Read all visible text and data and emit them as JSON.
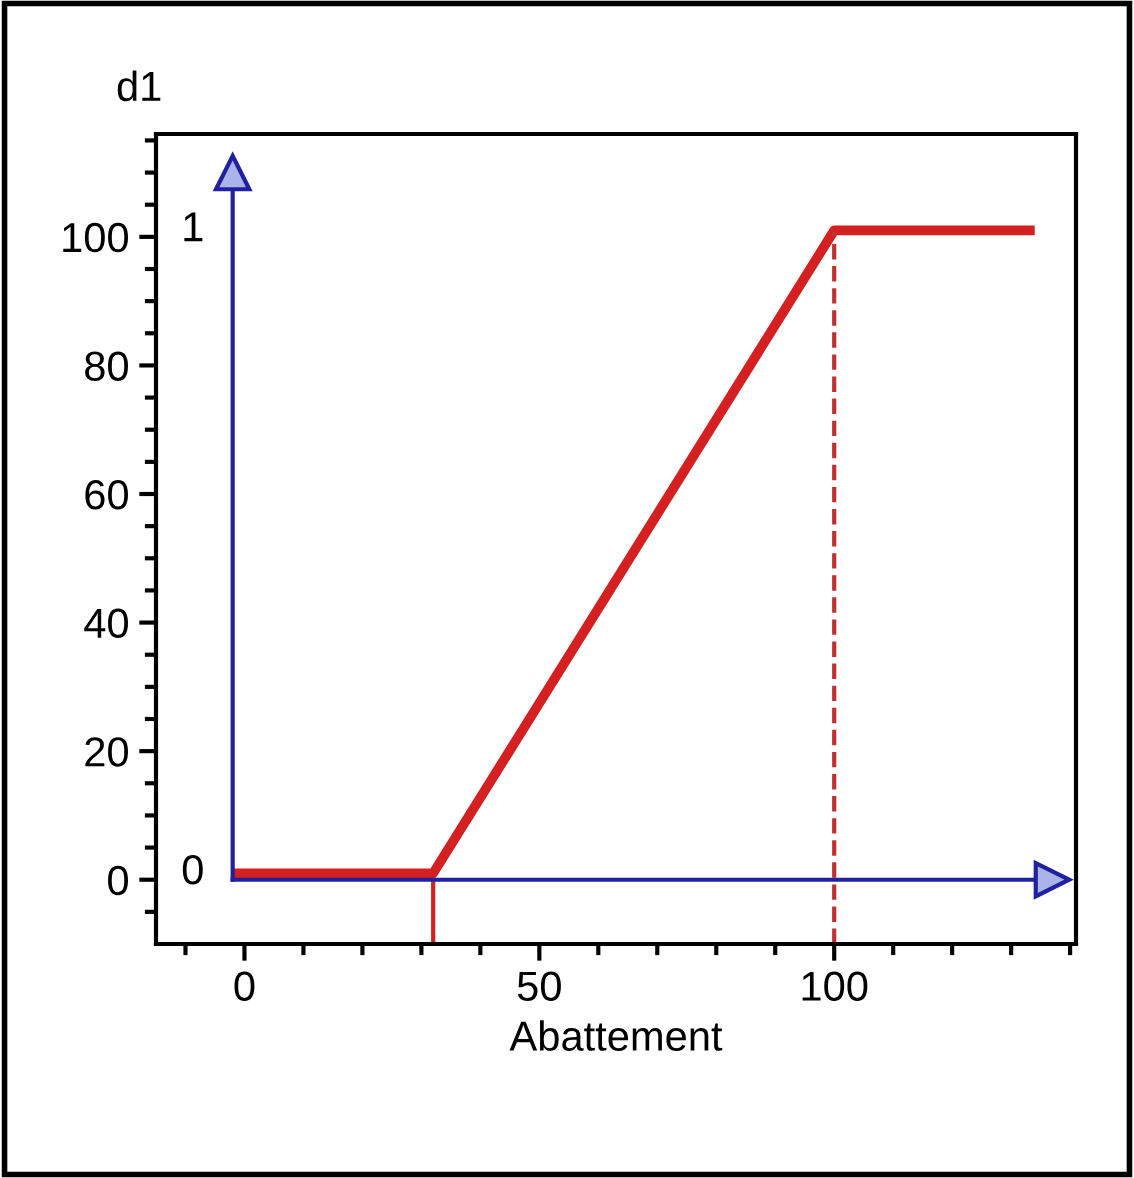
{
  "chart_data": {
    "type": "line",
    "title": "d1",
    "xlabel": "Abattement",
    "x": [
      -2,
      32,
      100,
      134
    ],
    "series": [
      {
        "color": "#d42020",
        "values": [
          1,
          1,
          101,
          101
        ]
      }
    ],
    "xlim": [
      -15,
      141
    ],
    "ylim": [
      -10,
      116
    ],
    "xticks": [
      {
        "value": -10,
        "label": null
      },
      0,
      {
        "value": 10,
        "label": null
      },
      {
        "value": 20,
        "label": null
      },
      {
        "value": 30,
        "label": null
      },
      {
        "value": 40,
        "label": null
      },
      50,
      {
        "value": 60,
        "label": null
      },
      {
        "value": 70,
        "label": null
      },
      {
        "value": 80,
        "label": null
      },
      {
        "value": 90,
        "label": null
      },
      100,
      {
        "value": 110,
        "label": null
      },
      {
        "value": 120,
        "label": null
      },
      {
        "value": 130,
        "label": null
      },
      {
        "value": 140,
        "label": null
      }
    ],
    "yticks": [
      {
        "value": -5,
        "label": null
      },
      0,
      {
        "value": 5,
        "label": null
      },
      {
        "value": 10,
        "label": null
      },
      {
        "value": 15,
        "label": null
      },
      20,
      {
        "value": 25,
        "label": null
      },
      {
        "value": 30,
        "label": null
      },
      {
        "value": 35,
        "label": null
      },
      40,
      {
        "value": 45,
        "label": null
      },
      {
        "value": 50,
        "label": null
      },
      {
        "value": 55,
        "label": null
      },
      60,
      {
        "value": 65,
        "label": null
      },
      {
        "value": 70,
        "label": null
      },
      {
        "value": 75,
        "label": null
      },
      80,
      {
        "value": 85,
        "label": null
      },
      {
        "value": 90,
        "label": null
      },
      {
        "value": 95,
        "label": null
      },
      100,
      {
        "value": 105,
        "label": null
      },
      {
        "value": 110,
        "label": null
      },
      {
        "value": 115,
        "label": null
      }
    ],
    "ref_lines": [
      {
        "axis": "x",
        "value": 32,
        "color": "#d42020",
        "line_style": "solid"
      },
      {
        "axis": "x",
        "value": 100,
        "color": "#c03030",
        "line_style": "dashed"
      },
      {
        "axis": "y",
        "value": 0,
        "color": "#2020a0",
        "line_style": "solid"
      },
      {
        "axis": "x",
        "value": -2,
        "color": "#2020a0",
        "line_style": "solid"
      }
    ],
    "annotations": [
      "0",
      "1"
    ],
    "grid": false,
    "legend": false,
    "marker": "none",
    "line_style": "solid"
  }
}
